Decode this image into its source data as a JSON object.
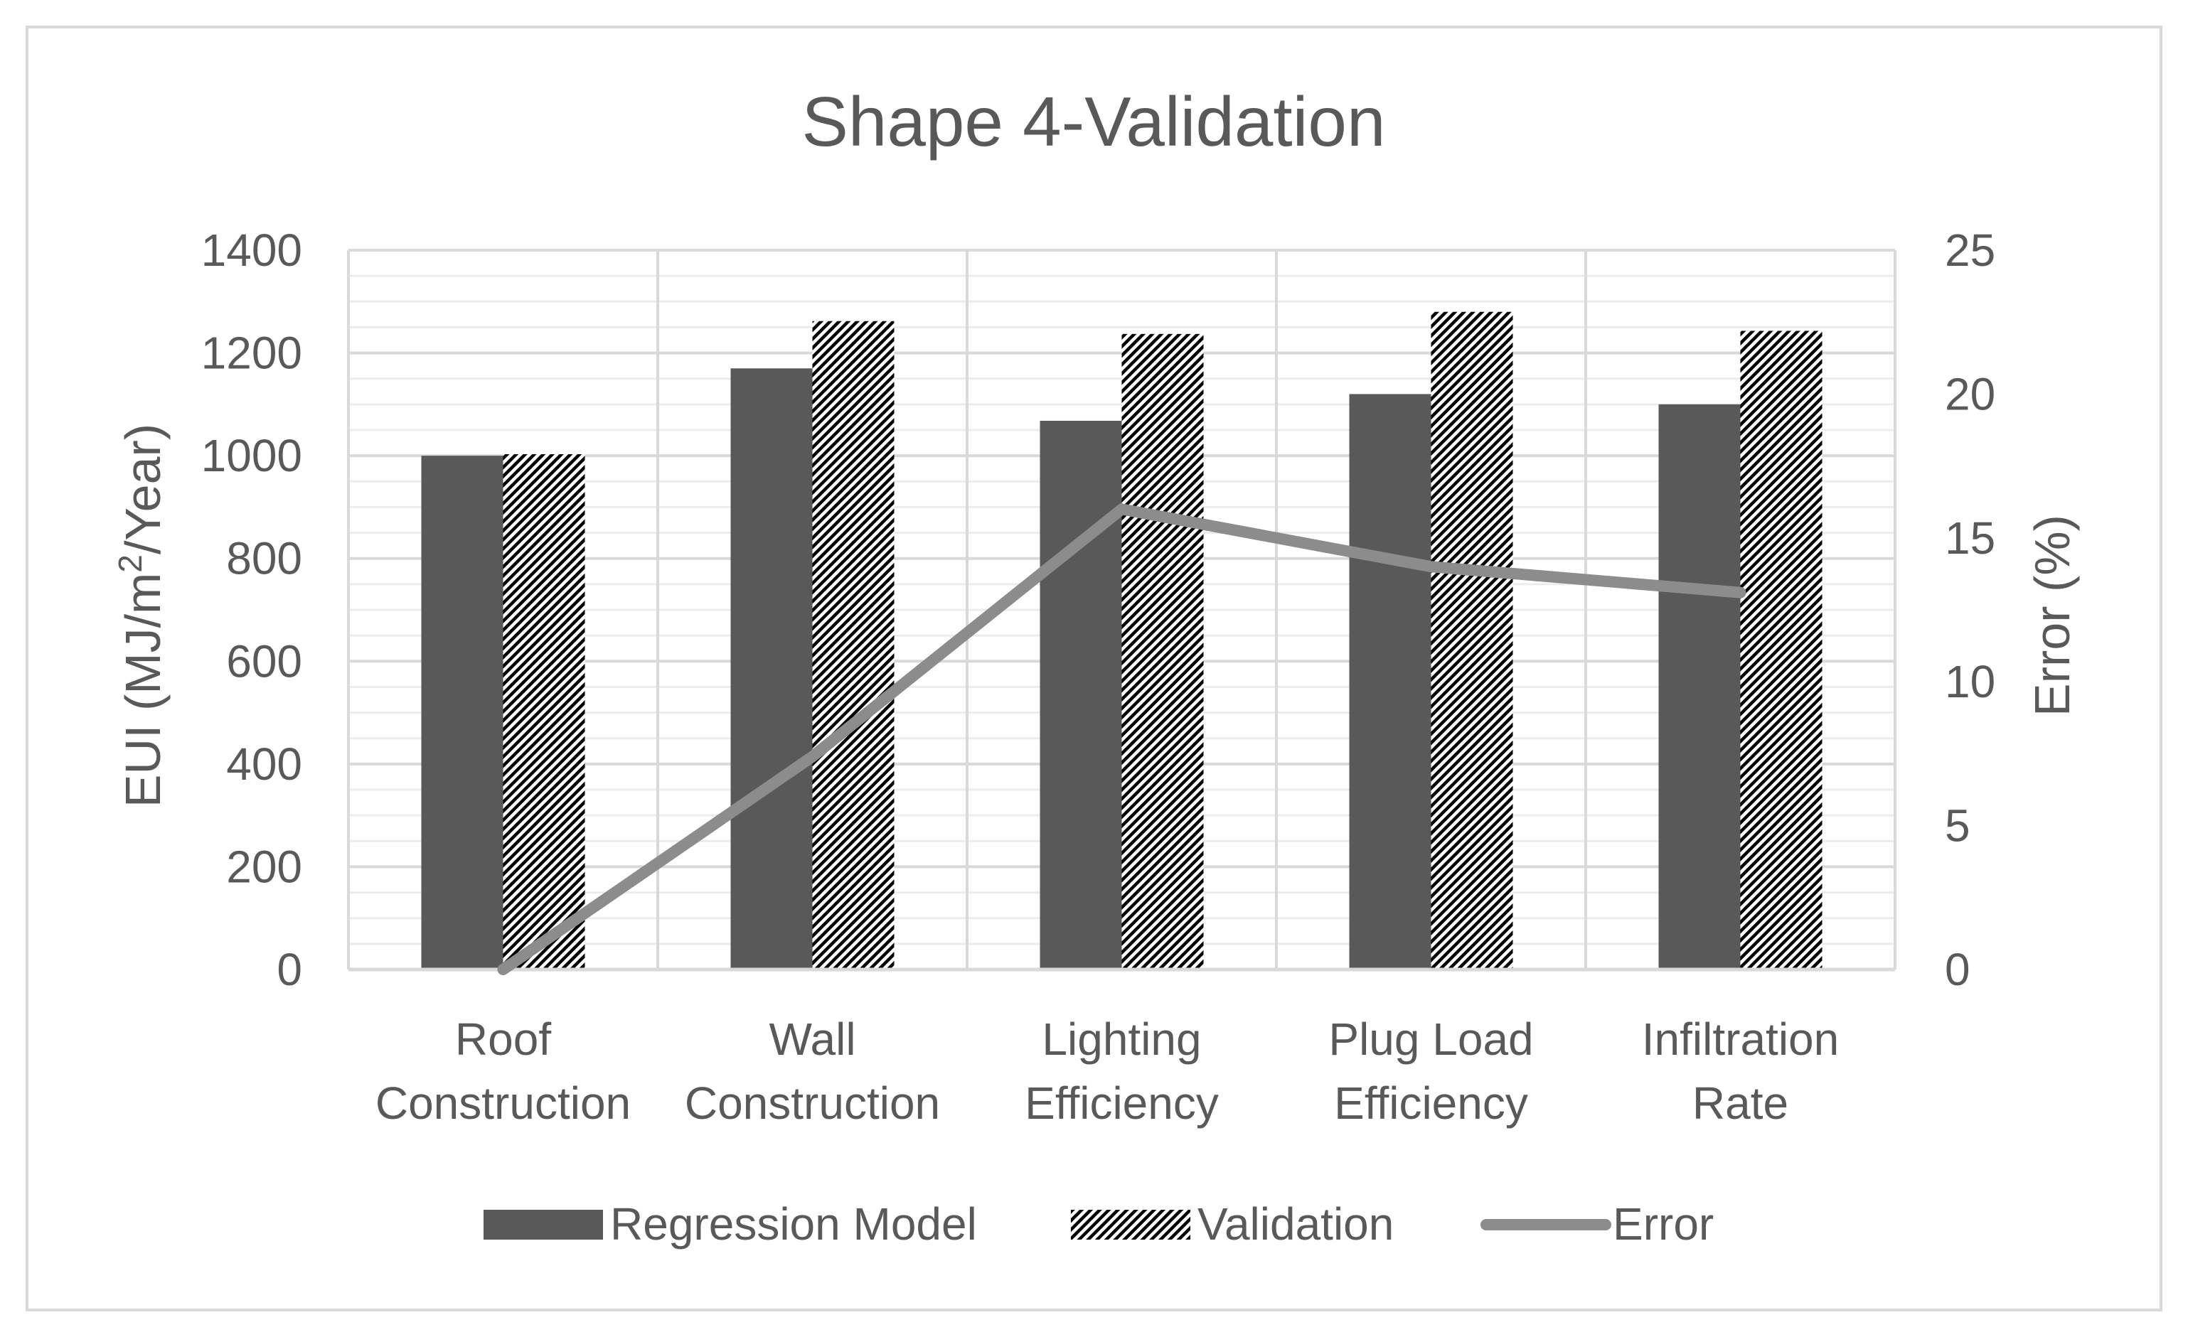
{
  "chart_data": {
    "type": "bar",
    "title": "Shape 4-Validation",
    "categories": [
      [
        "Roof",
        "Construction"
      ],
      [
        "Wall",
        "Construction"
      ],
      [
        "Lighting",
        "Efficiency"
      ],
      [
        "Plug Load",
        "Efficiency"
      ],
      [
        "Infiltration",
        "Rate"
      ]
    ],
    "series": [
      {
        "name": "Regression Model",
        "kind": "bar",
        "axis": "left",
        "color": "#595959",
        "values": [
          1000,
          1170,
          1068,
          1120,
          1100
        ]
      },
      {
        "name": "Validation",
        "kind": "bar",
        "axis": "left",
        "pattern": "diagonal-hatch",
        "color": "#000000",
        "values": [
          1003,
          1262,
          1237,
          1280,
          1243
        ]
      },
      {
        "name": "Error",
        "kind": "line",
        "axis": "right",
        "color": "#8c8c8c",
        "values": [
          0,
          7.4,
          16.0,
          14.0,
          13.1
        ]
      }
    ],
    "ylabel_parts": [
      "EUI (MJ/m",
      "2",
      "/Year)"
    ],
    "y2label": "Error (%)",
    "ylim": [
      0,
      1400
    ],
    "yticks": [
      0,
      200,
      400,
      600,
      800,
      1000,
      1200,
      1400
    ],
    "y2lim": [
      0,
      25
    ],
    "y2ticks": [
      0,
      5,
      10,
      15,
      20,
      25
    ],
    "grid": true,
    "legend_position": "bottom"
  }
}
